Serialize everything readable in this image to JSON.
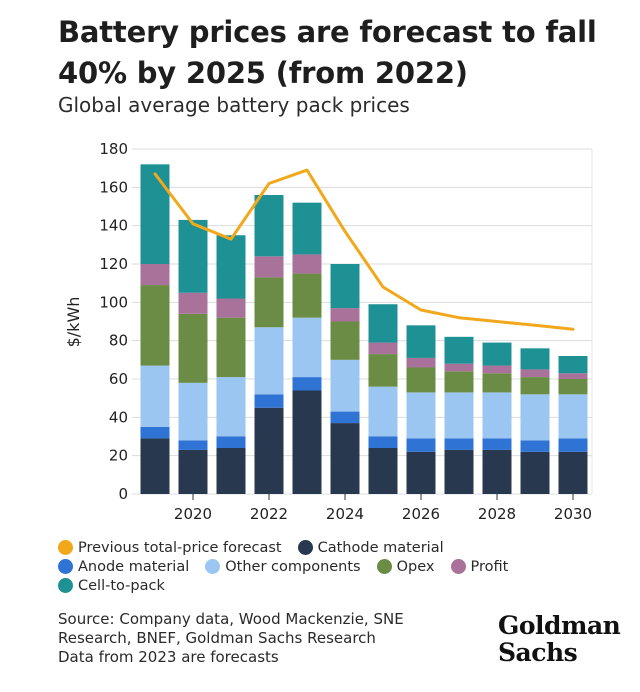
{
  "title": "Battery prices are forecast to fall 40% by 2025 (from 2022)",
  "subtitle": "Global average battery pack prices",
  "ylabel": "$/kWh",
  "legend": {
    "forecast": "Previous total-price forecast",
    "cathode": "Cathode material",
    "anode": "Anode material",
    "other": "Other components",
    "opex": "Opex",
    "profit": "Profit",
    "cell": "Cell-to-pack"
  },
  "colors": {
    "cathode": "#27384f",
    "anode": "#2f73d4",
    "other": "#9cc6f2",
    "opex": "#6a8c45",
    "profit": "#a8729b",
    "cell": "#1d9194",
    "forecast": "#f1a81b"
  },
  "source": {
    "line1": "Source: Company data, Wood Mackenzie, SNE",
    "line2": "Research, BNEF, Goldman Sachs Research",
    "line3": "Data from 2023 are forecasts"
  },
  "brand": {
    "line1": "Goldman",
    "line2": "Sachs"
  },
  "chart_data": {
    "type": "bar",
    "stacked": true,
    "categories": [
      "2019",
      "2020",
      "2021",
      "2022",
      "2023",
      "2024",
      "2025",
      "2026",
      "2027",
      "2028",
      "2029",
      "2030"
    ],
    "x_tick_labels": [
      "2020",
      "2022",
      "2024",
      "2026",
      "2028",
      "2030"
    ],
    "ylim": [
      0,
      180
    ],
    "y_ticks": [
      0,
      20,
      40,
      60,
      80,
      100,
      120,
      140,
      160,
      180
    ],
    "grid": true,
    "series": [
      {
        "name": "Cathode material",
        "key": "cathode",
        "values": [
          29,
          23,
          24,
          45,
          54,
          37,
          24,
          22,
          23,
          23,
          22,
          22
        ]
      },
      {
        "name": "Anode material",
        "key": "anode",
        "values": [
          6,
          5,
          6,
          7,
          7,
          6,
          6,
          7,
          6,
          6,
          6,
          7
        ]
      },
      {
        "name": "Other components",
        "key": "other",
        "values": [
          32,
          30,
          31,
          35,
          31,
          27,
          26,
          24,
          24,
          24,
          24,
          23
        ]
      },
      {
        "name": "Opex",
        "key": "opex",
        "values": [
          42,
          36,
          31,
          26,
          23,
          20,
          17,
          13,
          11,
          10,
          9,
          8
        ]
      },
      {
        "name": "Profit",
        "key": "profit",
        "values": [
          11,
          11,
          10,
          11,
          10,
          7,
          6,
          5,
          4,
          4,
          4,
          3
        ]
      },
      {
        "name": "Cell-to-pack",
        "key": "cell",
        "values": [
          52,
          38,
          33,
          32,
          27,
          23,
          20,
          17,
          14,
          12,
          11,
          9
        ]
      }
    ],
    "forecast_line": {
      "name": "Previous total-price forecast",
      "x": [
        "2019",
        "2020",
        "2021",
        "2022",
        "2023",
        "2024",
        "2025",
        "2026",
        "2027",
        "2028",
        "2029",
        "2030"
      ],
      "values": [
        167,
        141,
        133,
        162,
        169,
        137,
        108,
        96,
        92,
        90,
        88,
        86
      ]
    }
  }
}
